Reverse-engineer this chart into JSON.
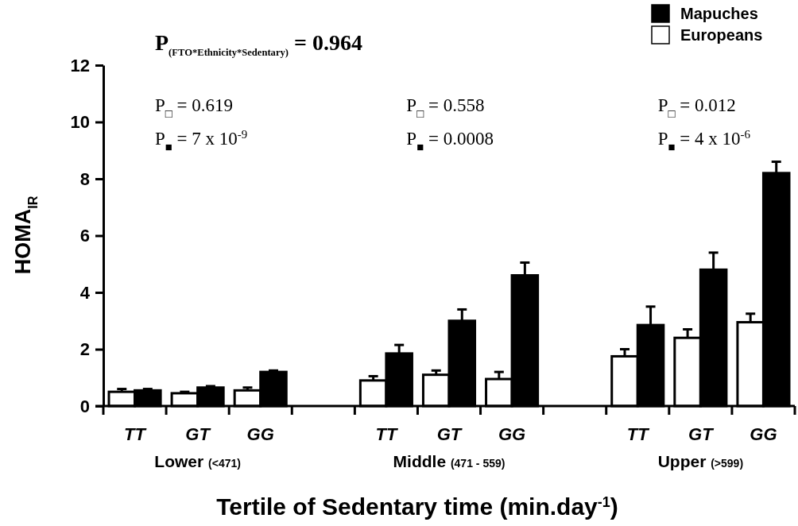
{
  "chart_data": {
    "type": "bar",
    "title": "P$_{(FTO*Ethnicity*Sedentary)}$ = 0.964",
    "xlabel": "Tertile of Sedentary time (min.day$^{-1}$)",
    "ylabel": "HOMA$_{IR}$",
    "categories": [
      "TT",
      "GT",
      "GG",
      null,
      "TT",
      "GT",
      "GG",
      null,
      "TT",
      "GT",
      "GG"
    ],
    "series": [
      {
        "name": "Europeans",
        "color": "#ffffff",
        "values": [
          0.5,
          0.45,
          0.55,
          null,
          0.9,
          1.1,
          0.95,
          null,
          1.75,
          2.4,
          2.95
        ],
        "errors": [
          [
            0.5,
            0.6
          ],
          [
            0.45,
            0.5
          ],
          [
            0.55,
            0.65
          ],
          null,
          [
            0.9,
            1.05
          ],
          [
            1.1,
            1.25
          ],
          [
            0.95,
            1.2
          ],
          null,
          [
            1.75,
            2.0
          ],
          [
            2.4,
            2.7
          ],
          [
            2.95,
            3.25
          ]
        ]
      },
      {
        "name": "Mapuches",
        "color": "#000000",
        "values": [
          0.55,
          0.65,
          1.2,
          null,
          1.85,
          3.0,
          4.6,
          null,
          2.85,
          4.8,
          8.2
        ],
        "errors": [
          [
            0.55,
            0.6
          ],
          [
            0.65,
            0.7
          ],
          [
            1.2,
            1.25
          ],
          null,
          [
            1.85,
            2.15
          ],
          [
            3.0,
            3.4
          ],
          [
            4.6,
            5.05
          ],
          null,
          [
            2.85,
            3.5
          ],
          [
            4.8,
            5.4
          ],
          [
            8.2,
            8.6
          ]
        ]
      }
    ],
    "ylim": [
      0,
      12
    ],
    "yticks": [
      0,
      2,
      4,
      6,
      8,
      10,
      12
    ],
    "legend": "top right",
    "annotations": [
      "Lower (<471)",
      "Middle (471 - 559)",
      "Upper (>599)",
      "P$_{□}$ = 0.619",
      "P$_{■}$ = 7 x 10$^{-9}$",
      "P$_{□}$ = 0.558",
      "P$_{■}$ = 0.0008",
      "P$_{□}$ = 0.012",
      "P$_{■}$ = 4 x 10$^{-6}$"
    ]
  }
}
